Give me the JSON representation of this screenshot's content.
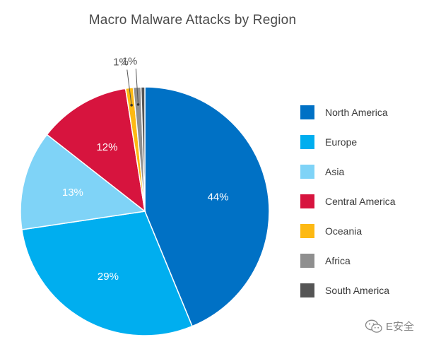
{
  "chart_data": {
    "type": "pie",
    "title": "Macro Malware Attacks by Region",
    "slices": [
      {
        "label": "North America",
        "value": 44,
        "display": "44%",
        "color": "#0071c5"
      },
      {
        "label": "Europe",
        "value": 29,
        "display": "29%",
        "color": "#00aeef"
      },
      {
        "label": "Asia",
        "value": 13,
        "display": "13%",
        "color": "#7fd3f7"
      },
      {
        "label": "Central America",
        "value": 12,
        "display": "12%",
        "color": "#d7143e"
      },
      {
        "label": "Oceania",
        "value": 1,
        "display": "1%",
        "color": "#fdb913"
      },
      {
        "label": "Africa",
        "value": 1,
        "display": "1%",
        "color": "#8f8f8f"
      },
      {
        "label": "South America",
        "value": 0.5,
        "display": "",
        "color": "#555555"
      }
    ],
    "legend_position": "right"
  },
  "watermark": {
    "text": "E安全",
    "icon": "wechat-icon"
  }
}
